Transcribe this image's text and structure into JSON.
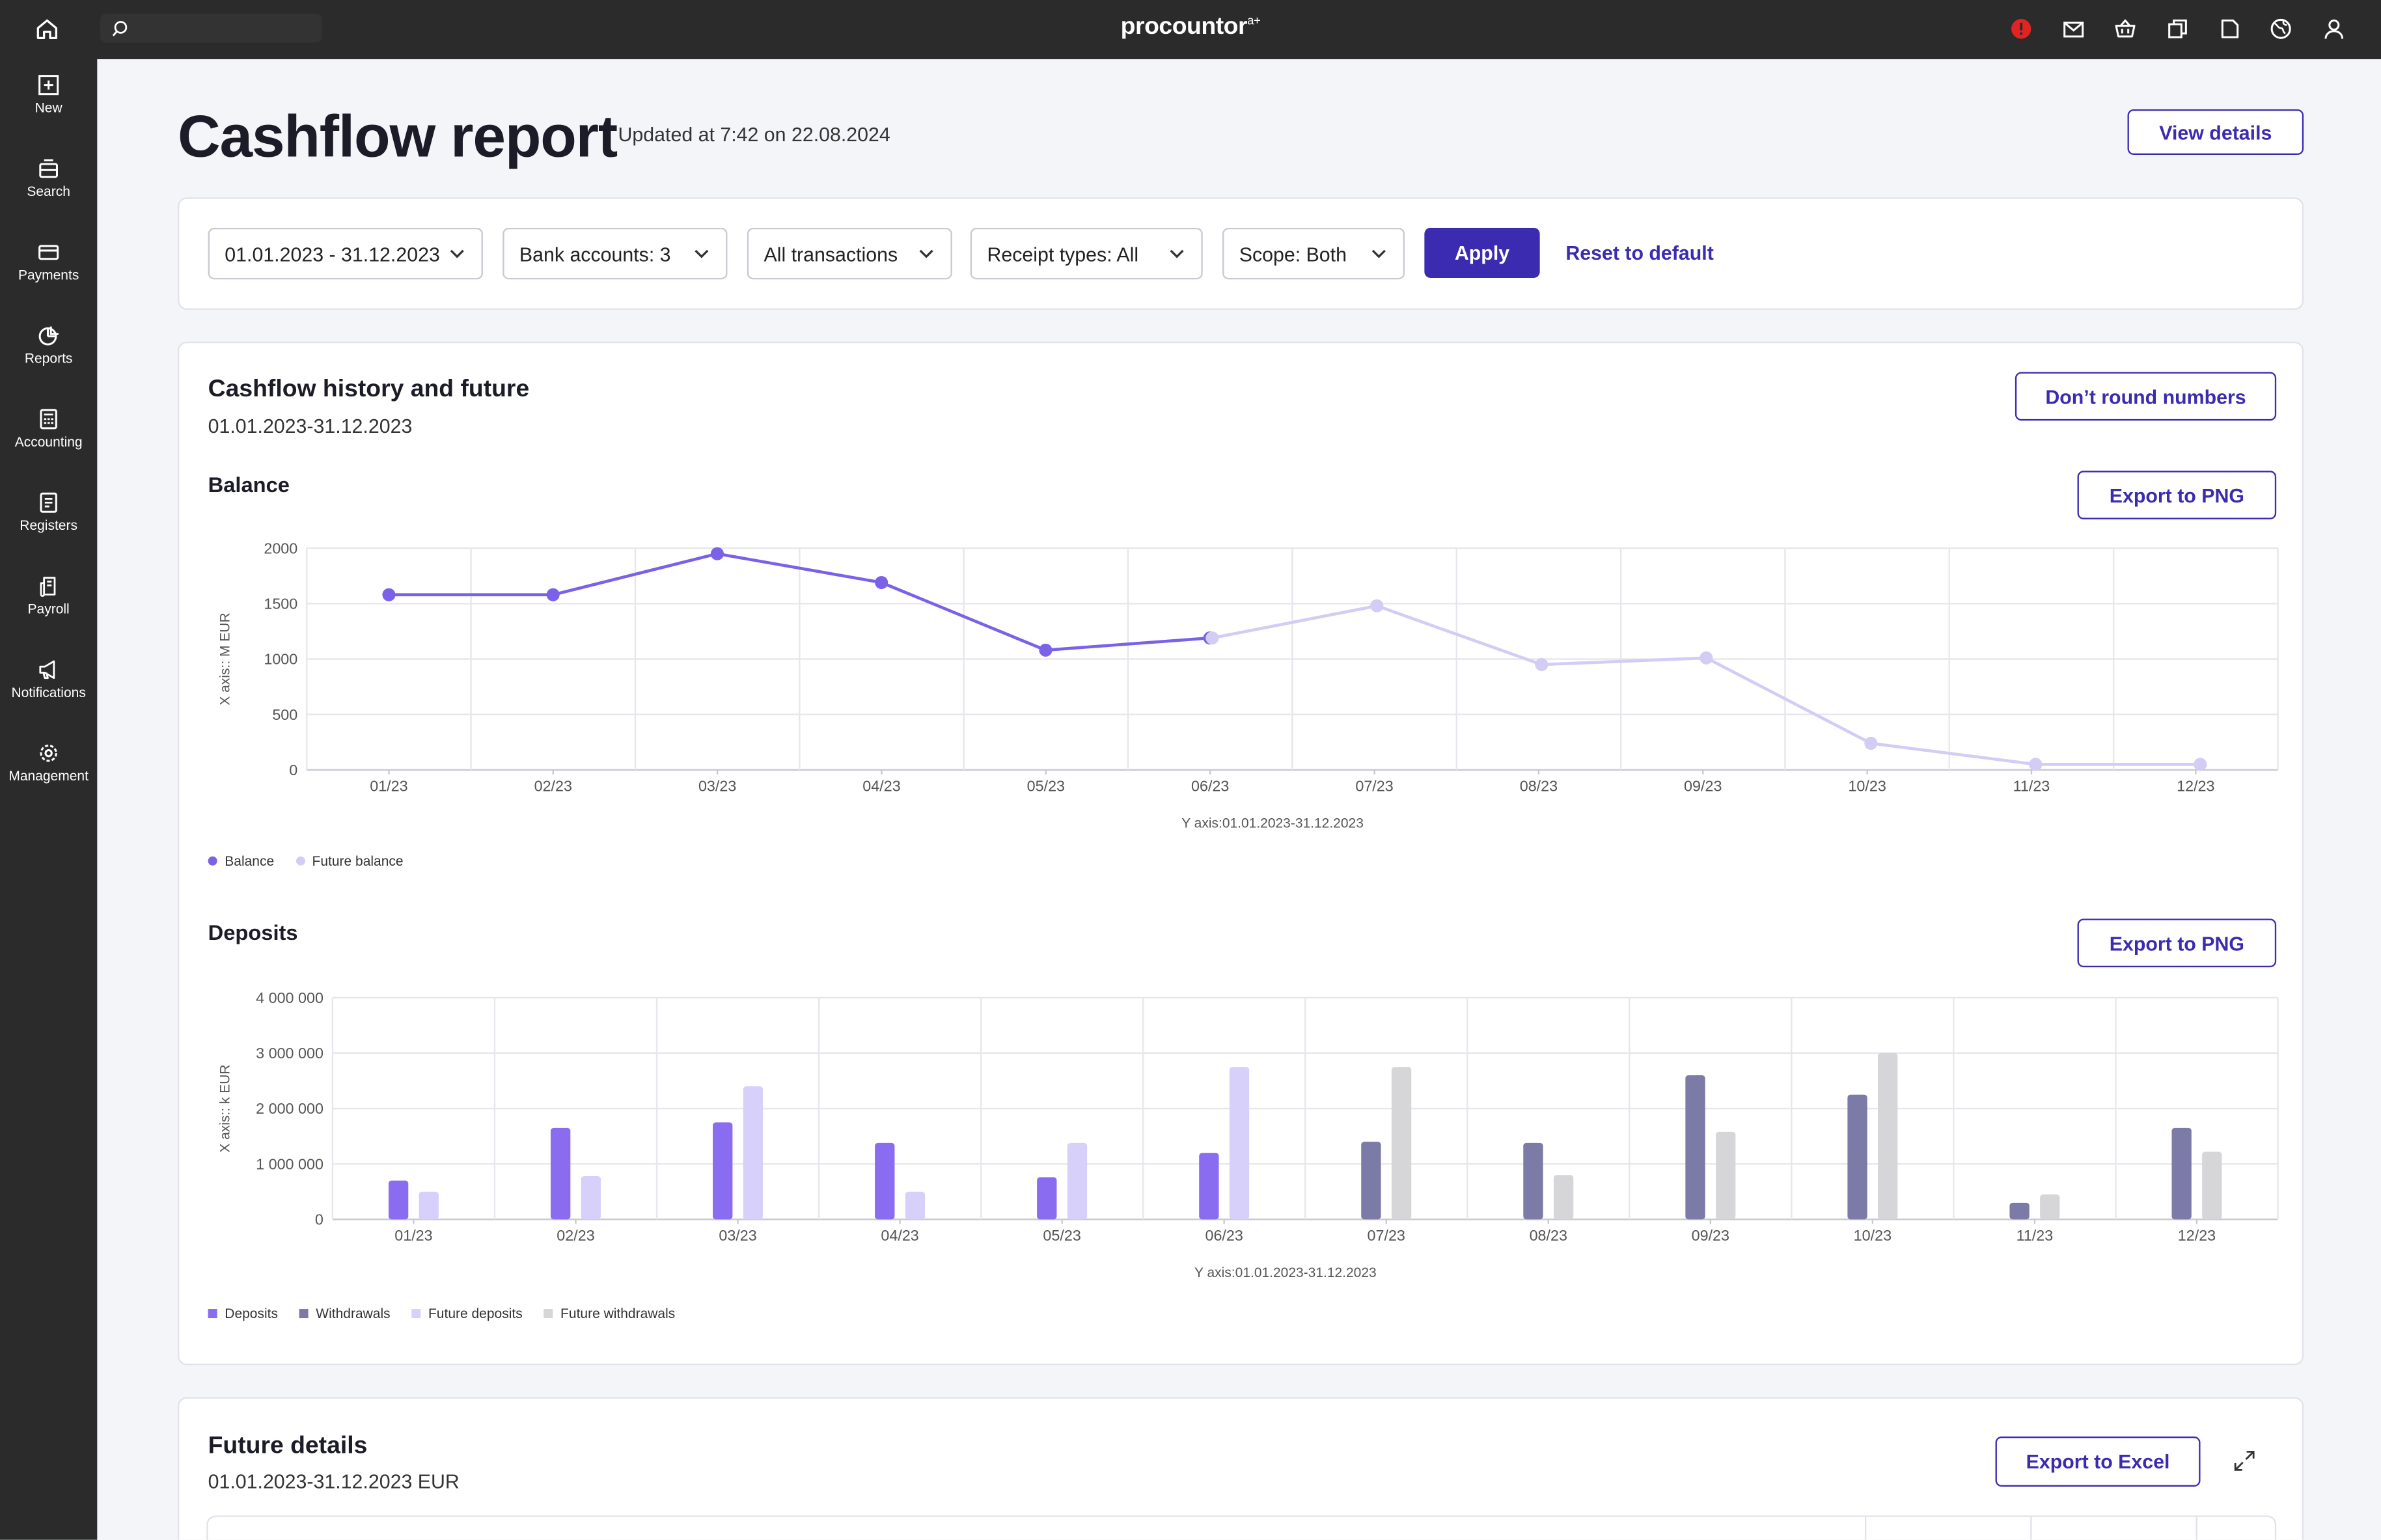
{
  "topbar": {
    "logo": "procountor",
    "logo_sup": "a+",
    "icons": [
      "home-icon",
      "search-icon",
      "alert-icon",
      "mail-icon",
      "basket-icon",
      "copy-icon",
      "document-icon",
      "globe-icon",
      "user-icon"
    ]
  },
  "sidebar": {
    "items": [
      {
        "label": "New",
        "icon": "plus-square-icon"
      },
      {
        "label": "Search",
        "icon": "inbox-search-icon"
      },
      {
        "label": "Payments",
        "icon": "card-icon"
      },
      {
        "label": "Reports",
        "icon": "pie-chart-icon"
      },
      {
        "label": "Accounting",
        "icon": "calculator-icon"
      },
      {
        "label": "Registers",
        "icon": "list-icon"
      },
      {
        "label": "Payroll",
        "icon": "payroll-icon"
      },
      {
        "label": "Notifications",
        "icon": "megaphone-icon"
      },
      {
        "label": "Management",
        "icon": "gear-icon"
      }
    ]
  },
  "header": {
    "title": "Cashflow report",
    "updated": "Updated at 7:42 on 22.08.2024",
    "view_details": "View details"
  },
  "filters": {
    "date_range": "01.01.2023 - 31.12.2023",
    "bank_accounts": "Bank accounts:  3",
    "transactions": "All transactions",
    "receipt_types": "Receipt types:  All",
    "scope": "Scope:  Both",
    "apply": "Apply",
    "reset": "Reset to default"
  },
  "history": {
    "title": "Cashflow history and future",
    "period": "01.01.2023-31.12.2023",
    "round_button": "Don’t round numbers"
  },
  "balance": {
    "title": "Balance",
    "export": "Export to PNG",
    "legend": [
      "Balance",
      "Future balance"
    ]
  },
  "deposits": {
    "title": "Deposits",
    "export": "Export to PNG",
    "legend": [
      "Deposits",
      "Withdrawals",
      "Future deposits",
      "Future withdrawals"
    ]
  },
  "future": {
    "title": "Future details",
    "period": "01.01.2023-31.12.2023 EUR",
    "export": "Export to Excel"
  },
  "colors": {
    "accent": "#3b2bb0",
    "balance": "#7b61e8",
    "future_balance": "#d3ccf5",
    "deposits": "#8a6cf0",
    "withdrawals": "#7c7aa6",
    "future_deposits": "#d7d0fa",
    "future_withdrawals": "#d6d6d8"
  },
  "chart_data": [
    {
      "type": "line",
      "title": "Balance",
      "xlabel": "Y axis:01.01.2023-31.12.2023",
      "ylabel": "X axis:: M EUR",
      "categories": [
        "01/23",
        "02/23",
        "03/23",
        "04/23",
        "05/23",
        "06/23",
        "07/23",
        "08/23",
        "09/23",
        "10/23",
        "11/23",
        "12/23"
      ],
      "ylim": [
        0,
        2000
      ],
      "yticks": [
        "0",
        "500",
        "1000",
        "1500",
        "2000"
      ],
      "series": [
        {
          "name": "Balance",
          "values": [
            1580,
            1580,
            1950,
            1690,
            1080,
            1190,
            null,
            null,
            null,
            null,
            null,
            null
          ]
        },
        {
          "name": "Future balance",
          "values": [
            null,
            null,
            null,
            null,
            null,
            1190,
            1480,
            950,
            1010,
            240,
            50,
            50
          ]
        }
      ],
      "grid": true,
      "legend": "bottom-left"
    },
    {
      "type": "bar",
      "title": "Deposits",
      "xlabel": "Y axis:01.01.2023-31.12.2023",
      "ylabel": "X axis:: k EUR",
      "categories": [
        "01/23",
        "02/23",
        "03/23",
        "04/23",
        "05/23",
        "06/23",
        "07/23",
        "08/23",
        "09/23",
        "10/23",
        "11/23",
        "12/23"
      ],
      "ylim": [
        0,
        4000000
      ],
      "yticks": [
        "0",
        "1 000 000",
        "2 000 000",
        "3 000 000",
        "4 000 000"
      ],
      "series": [
        {
          "name": "Deposits",
          "values": [
            700000,
            1650000,
            1750000,
            1380000,
            760000,
            1200000,
            null,
            null,
            null,
            null,
            null,
            null
          ]
        },
        {
          "name": "Withdrawals",
          "values": [
            null,
            null,
            null,
            null,
            null,
            null,
            1400000,
            1380000,
            2600000,
            2250000,
            300000,
            1650000
          ]
        },
        {
          "name": "Future deposits",
          "values": [
            500000,
            780000,
            2400000,
            500000,
            1380000,
            2750000,
            null,
            null,
            null,
            null,
            null,
            null
          ]
        },
        {
          "name": "Future withdrawals",
          "values": [
            null,
            null,
            null,
            null,
            null,
            null,
            2750000,
            800000,
            1580000,
            3000000,
            450000,
            1220000
          ]
        }
      ],
      "grid": true,
      "legend": "bottom-left"
    }
  ]
}
